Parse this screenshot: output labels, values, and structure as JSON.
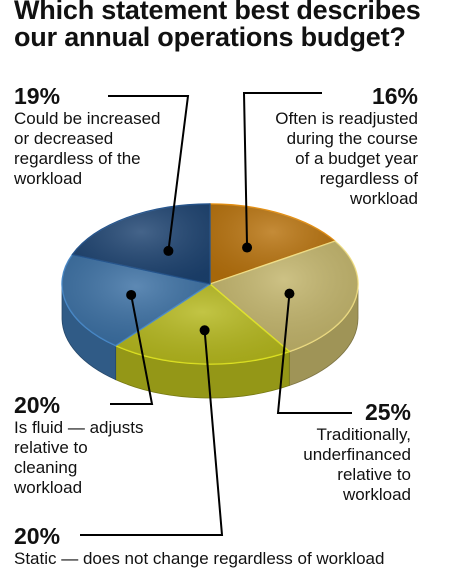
{
  "chart_data": {
    "type": "pie",
    "title": "Which statement best describes\nour annual operations budget?",
    "slices": [
      {
        "label": "Often is readjusted\nduring the course\nof a budget year\nregardless of\nworkload",
        "value": 16,
        "display": "16%",
        "color": "#b8720c"
      },
      {
        "label": "Traditionally,\nunderfinanced\nrelative to\nworkload",
        "value": 25,
        "display": "25%",
        "color": "#c2b46a"
      },
      {
        "label": "Static — does not change regardless of workload",
        "value": 20,
        "display": "20%",
        "color": "#b5b81c"
      },
      {
        "label": "Is fluid — adjusts\nrelative to\ncleaning\nworkload",
        "value": 20,
        "display": "20%",
        "color": "#3a6fa3"
      },
      {
        "label": "Could be increased\nor decreased\nregardless of the\nworkload",
        "value": 19,
        "display": "19%",
        "color": "#1c4270"
      }
    ]
  }
}
